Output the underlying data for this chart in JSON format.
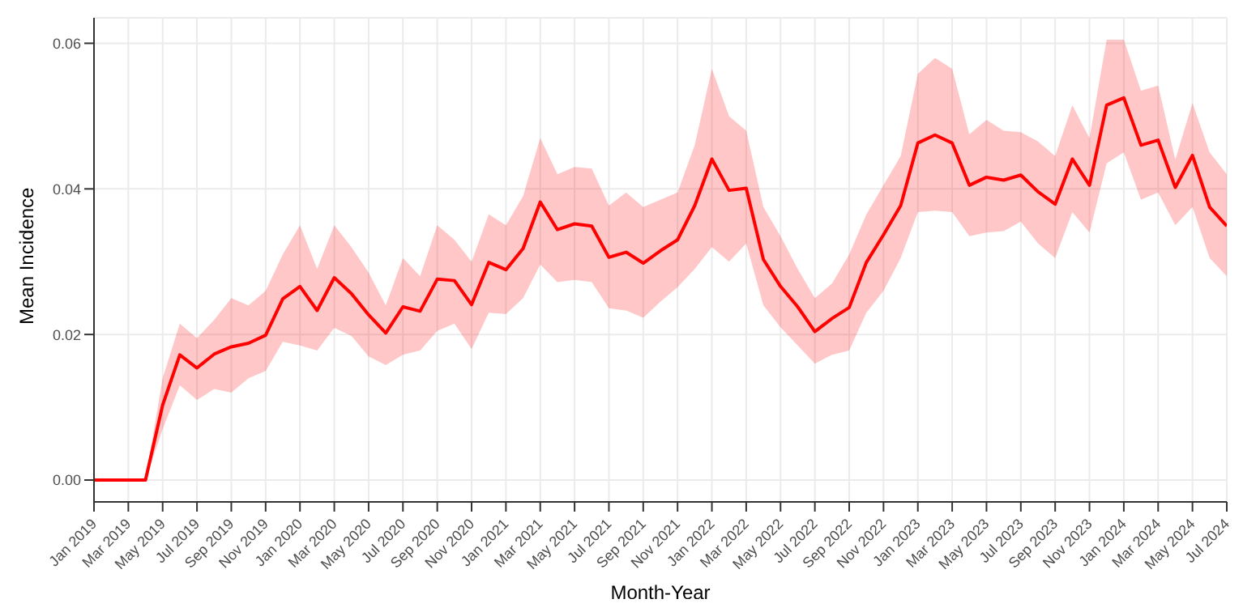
{
  "chart_data": {
    "type": "line",
    "xlabel": "Month-Year",
    "ylabel": "Mean Incidence",
    "x": [
      "2019-01",
      "2019-02",
      "2019-03",
      "2019-04",
      "2019-05",
      "2019-06",
      "2019-07",
      "2019-08",
      "2019-09",
      "2019-10",
      "2019-11",
      "2019-12",
      "2020-01",
      "2020-02",
      "2020-03",
      "2020-04",
      "2020-05",
      "2020-06",
      "2020-07",
      "2020-08",
      "2020-09",
      "2020-10",
      "2020-11",
      "2020-12",
      "2021-01",
      "2021-02",
      "2021-03",
      "2021-04",
      "2021-05",
      "2021-06",
      "2021-07",
      "2021-08",
      "2021-09",
      "2021-10",
      "2021-11",
      "2021-12",
      "2022-01",
      "2022-02",
      "2022-03",
      "2022-04",
      "2022-05",
      "2022-06",
      "2022-07",
      "2022-08",
      "2022-09",
      "2022-10",
      "2022-11",
      "2022-12",
      "2023-01",
      "2023-02",
      "2023-03",
      "2023-04",
      "2023-05",
      "2023-06",
      "2023-07",
      "2023-08",
      "2023-09",
      "2023-10",
      "2023-11",
      "2023-12",
      "2024-01",
      "2024-02",
      "2024-03",
      "2024-04",
      "2024-05",
      "2024-06",
      "2024-07"
    ],
    "series": [
      {
        "color": "#ff0000",
        "values": [
          0,
          0,
          0,
          0,
          0.0103,
          0.0172,
          0.0154,
          0.0173,
          0.0183,
          0.0188,
          0.0199,
          0.0249,
          0.0266,
          0.0233,
          0.0278,
          0.0256,
          0.0227,
          0.0202,
          0.0238,
          0.0232,
          0.0276,
          0.0274,
          0.0241,
          0.0299,
          0.0289,
          0.0318,
          0.0382,
          0.0344,
          0.0352,
          0.0349,
          0.0306,
          0.0313,
          0.0298,
          0.0315,
          0.033,
          0.0377,
          0.0441,
          0.0398,
          0.0401,
          0.0303,
          0.0266,
          0.0238,
          0.0204,
          0.0222,
          0.0237,
          0.0299,
          0.0337,
          0.0377,
          0.0463,
          0.0474,
          0.0463,
          0.0405,
          0.0416,
          0.0412,
          0.0419,
          0.0396,
          0.0379,
          0.0441,
          0.0405,
          0.0515,
          0.0525,
          0.046,
          0.0467,
          0.0402,
          0.0446,
          0.0375,
          0.0349
        ],
        "lower": [
          0,
          0,
          0,
          0,
          0.007,
          0.013,
          0.011,
          0.0125,
          0.012,
          0.014,
          0.015,
          0.019,
          0.0185,
          0.0178,
          0.0209,
          0.0198,
          0.017,
          0.0158,
          0.0172,
          0.0178,
          0.0205,
          0.0215,
          0.018,
          0.023,
          0.0228,
          0.025,
          0.0296,
          0.0272,
          0.0275,
          0.0272,
          0.0236,
          0.0233,
          0.0223,
          0.0245,
          0.0265,
          0.029,
          0.032,
          0.03,
          0.0325,
          0.024,
          0.021,
          0.0185,
          0.016,
          0.0172,
          0.0178,
          0.023,
          0.026,
          0.0305,
          0.0368,
          0.037,
          0.0368,
          0.0335,
          0.034,
          0.0342,
          0.0355,
          0.0325,
          0.0305,
          0.0368,
          0.034,
          0.0435,
          0.045,
          0.0385,
          0.0395,
          0.035,
          0.0375,
          0.0305,
          0.028
        ],
        "upper": [
          0,
          0,
          0,
          0,
          0.014,
          0.0215,
          0.0195,
          0.022,
          0.025,
          0.024,
          0.026,
          0.031,
          0.035,
          0.029,
          0.035,
          0.032,
          0.0285,
          0.024,
          0.0305,
          0.028,
          0.035,
          0.033,
          0.03,
          0.0365,
          0.035,
          0.039,
          0.047,
          0.042,
          0.043,
          0.0428,
          0.0377,
          0.0395,
          0.0375,
          0.0385,
          0.0395,
          0.046,
          0.0565,
          0.05,
          0.048,
          0.0375,
          0.0335,
          0.029,
          0.025,
          0.027,
          0.031,
          0.0365,
          0.0405,
          0.0445,
          0.0558,
          0.058,
          0.0565,
          0.0475,
          0.0495,
          0.048,
          0.0478,
          0.0465,
          0.0445,
          0.0515,
          0.047,
          0.0605,
          0.0605,
          0.0535,
          0.0542,
          0.044,
          0.0518,
          0.045,
          0.042
        ]
      }
    ],
    "xlim": [
      "2019-01",
      "2024-07"
    ],
    "xticks": [
      {
        "value": "2019-01",
        "label": "Jan 2019"
      },
      {
        "value": "2019-03",
        "label": "Mar 2019"
      },
      {
        "value": "2019-05",
        "label": "May 2019"
      },
      {
        "value": "2019-07",
        "label": "Jul 2019"
      },
      {
        "value": "2019-09",
        "label": "Sep 2019"
      },
      {
        "value": "2019-11",
        "label": "Nov 2019"
      },
      {
        "value": "2020-01",
        "label": "Jan 2020"
      },
      {
        "value": "2020-03",
        "label": "Mar 2020"
      },
      {
        "value": "2020-05",
        "label": "May 2020"
      },
      {
        "value": "2020-07",
        "label": "Jul 2020"
      },
      {
        "value": "2020-09",
        "label": "Sep 2020"
      },
      {
        "value": "2020-11",
        "label": "Nov 2020"
      },
      {
        "value": "2021-01",
        "label": "Jan 2021"
      },
      {
        "value": "2021-03",
        "label": "Mar 2021"
      },
      {
        "value": "2021-05",
        "label": "May 2021"
      },
      {
        "value": "2021-07",
        "label": "Jul 2021"
      },
      {
        "value": "2021-09",
        "label": "Sep 2021"
      },
      {
        "value": "2021-11",
        "label": "Nov 2021"
      },
      {
        "value": "2022-01",
        "label": "Jan 2022"
      },
      {
        "value": "2022-03",
        "label": "Mar 2022"
      },
      {
        "value": "2022-05",
        "label": "May 2022"
      },
      {
        "value": "2022-07",
        "label": "Jul 2022"
      },
      {
        "value": "2022-09",
        "label": "Sep 2022"
      },
      {
        "value": "2022-11",
        "label": "Nov 2022"
      },
      {
        "value": "2023-01",
        "label": "Jan 2023"
      },
      {
        "value": "2023-03",
        "label": "Mar 2023"
      },
      {
        "value": "2023-05",
        "label": "May 2023"
      },
      {
        "value": "2023-07",
        "label": "Jul 2023"
      },
      {
        "value": "2023-09",
        "label": "Sep 2023"
      },
      {
        "value": "2023-11",
        "label": "Nov 2023"
      },
      {
        "value": "2024-01",
        "label": "Jan 2024"
      },
      {
        "value": "2024-03",
        "label": "Mar 2024"
      },
      {
        "value": "2024-05",
        "label": "May 2024"
      },
      {
        "value": "2024-07",
        "label": "Jul 2024"
      }
    ],
    "ylim": [
      -0.003,
      0.0635
    ],
    "yticks": [
      {
        "value": 0,
        "label": "0.00"
      },
      {
        "value": 0.02,
        "label": "0.02"
      },
      {
        "value": 0.04,
        "label": "0.04"
      },
      {
        "value": 0.06,
        "label": "0.06"
      }
    ],
    "grid": true,
    "marker": "none",
    "line_style": "solid"
  }
}
